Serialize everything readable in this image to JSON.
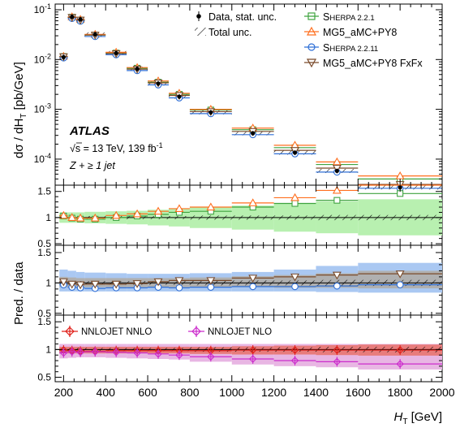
{
  "chart_data": [
    {
      "type": "line",
      "panel": "main",
      "ylabel": "dσ / dH_T [pb/GeV]",
      "yscale": "log",
      "ylim": [
        3e-05,
        0.13
      ],
      "xlim": [
        160,
        2000
      ],
      "x_ticks": [
        200,
        400,
        600,
        800,
        1000,
        1200,
        1400,
        1600,
        1800,
        2000
      ],
      "y_ticks": [
        {
          "v": 0.1,
          "b": "10",
          "e": "-1"
        },
        {
          "v": 0.01,
          "b": "10",
          "e": "-2"
        },
        {
          "v": 0.001,
          "b": "10",
          "e": "-3"
        },
        {
          "v": 0.0001,
          "b": "10",
          "e": "-4"
        }
      ],
      "bins": [
        [
          180,
          220
        ],
        [
          220,
          260
        ],
        [
          260,
          300
        ],
        [
          300,
          400
        ],
        [
          400,
          500
        ],
        [
          500,
          600
        ],
        [
          600,
          700
        ],
        [
          700,
          800
        ],
        [
          800,
          1000
        ],
        [
          1000,
          1200
        ],
        [
          1200,
          1400
        ],
        [
          1400,
          1600
        ],
        [
          1600,
          2000
        ]
      ],
      "data": [
        0.0112,
        0.072,
        0.064,
        0.032,
        0.0135,
        0.0065,
        0.0033,
        0.0018,
        0.00087,
        0.00033,
        0.000135,
        5.8e-05,
        2.7e-05
      ],
      "series": [
        {
          "name": "SHERPA 2.2.1",
          "color": "#3fa33f",
          "marker": "square",
          "values": [
            0.0115,
            0.071,
            0.062,
            0.031,
            0.0135,
            0.0067,
            0.0035,
            0.002,
            0.00097,
            0.00039,
            0.00017,
            7.8e-05,
            4e-05
          ]
        },
        {
          "name": "MG5_aMC+PY8",
          "color": "#ff6f1f",
          "marker": "triangle-up",
          "values": [
            0.0116,
            0.072,
            0.064,
            0.032,
            0.014,
            0.0069,
            0.0037,
            0.0021,
            0.001,
            0.00042,
            0.00019,
            8.8e-05,
            4.6e-05
          ]
        },
        {
          "name": "SHERPA 2.2.11",
          "color": "#2f6fd6",
          "marker": "circle",
          "values": [
            0.0108,
            0.067,
            0.059,
            0.029,
            0.0125,
            0.006,
            0.0031,
            0.0017,
            0.00082,
            0.00031,
            0.000128,
            5.5e-05,
            2.6e-05
          ]
        },
        {
          "name": "MG5_aMC+PY8 FxFx",
          "color": "#7a4a2a",
          "marker": "triangle-down",
          "values": [
            0.0114,
            0.07,
            0.062,
            0.031,
            0.0132,
            0.0064,
            0.0034,
            0.0019,
            0.0009,
            0.00036,
            0.00015,
            6.6e-05,
            3.1e-05
          ]
        }
      ],
      "legend": {
        "data": "Data, stat. unc.",
        "total": "Total unc."
      },
      "annotations": {
        "experiment": "ATLAS",
        "energy_sqrt": "s",
        "energy": " = 13 TeV, 139 fb",
        "energy_exp": "-1",
        "selection": "Z + ≥ 1 jet"
      }
    },
    {
      "type": "line",
      "panel": "ratio-1",
      "ylim": [
        0.47,
        1.62
      ],
      "y_ticks": [
        {
          "v": 0.5,
          "l": "0.5"
        },
        {
          "v": 1,
          "l": "1"
        },
        {
          "v": 1.5,
          "l": "1.5"
        }
      ],
      "band": {
        "color": "#b8f0b0",
        "up": [
          1.1,
          1.1,
          1.1,
          1.11,
          1.12,
          1.13,
          1.15,
          1.17,
          1.2,
          1.23,
          1.27,
          1.31,
          1.35
        ],
        "dn": [
          0.9,
          0.9,
          0.9,
          0.89,
          0.88,
          0.87,
          0.85,
          0.83,
          0.8,
          0.77,
          0.73,
          0.7,
          0.66
        ]
      },
      "series": [
        {
          "name": "SHERPA 2.2.1",
          "values": [
            1.03,
            0.99,
            0.97,
            0.97,
            1.0,
            1.03,
            1.06,
            1.1,
            1.12,
            1.2,
            1.27,
            1.33,
            1.46
          ]
        },
        {
          "name": "MG5_aMC+PY8",
          "values": [
            1.04,
            1.0,
            0.99,
            0.99,
            1.04,
            1.07,
            1.12,
            1.17,
            1.2,
            1.28,
            1.38,
            1.52,
            1.64
          ]
        }
      ]
    },
    {
      "type": "line",
      "panel": "ratio-2",
      "ylim": [
        0.47,
        1.62
      ],
      "y_ticks": [
        {
          "v": 0.5,
          "l": "0.5"
        },
        {
          "v": 1,
          "l": "1"
        },
        {
          "v": 1.5,
          "l": "1.5"
        }
      ],
      "ylabel": "Pred. / data",
      "bands": [
        {
          "color": "#aac8f2",
          "up": [
            1.22,
            1.2,
            1.18,
            1.17,
            1.16,
            1.15,
            1.15,
            1.15,
            1.16,
            1.18,
            1.22,
            1.28,
            1.33
          ],
          "dn": [
            0.86,
            0.86,
            0.86,
            0.86,
            0.86,
            0.86,
            0.86,
            0.86,
            0.86,
            0.86,
            0.86,
            0.85,
            0.84
          ]
        },
        {
          "color": "#b0b0b0",
          "up": [
            1.1,
            1.09,
            1.08,
            1.08,
            1.08,
            1.08,
            1.08,
            1.08,
            1.09,
            1.11,
            1.13,
            1.16,
            1.2
          ],
          "dn": [
            0.93,
            0.93,
            0.93,
            0.93,
            0.93,
            0.93,
            0.93,
            0.93,
            0.93,
            0.93,
            0.92,
            0.92,
            0.91
          ]
        }
      ],
      "series": [
        {
          "name": "SHERPA 2.2.11",
          "values": [
            0.97,
            0.93,
            0.92,
            0.91,
            0.92,
            0.92,
            0.93,
            0.92,
            0.93,
            0.94,
            0.94,
            0.95,
            0.97
          ]
        },
        {
          "name": "MG5_aMC+PY8 FxFx",
          "values": [
            1.02,
            0.98,
            0.97,
            0.98,
            0.98,
            0.99,
            1.02,
            1.04,
            1.04,
            1.08,
            1.1,
            1.13,
            1.15
          ]
        }
      ]
    },
    {
      "type": "line",
      "panel": "ratio-3",
      "ylim": [
        0.42,
        1.62
      ],
      "y_ticks": [
        {
          "v": 0.5,
          "l": "0.5"
        },
        {
          "v": 1,
          "l": "1"
        },
        {
          "v": 1.5,
          "l": "1.5"
        }
      ],
      "xlabel": "H_T [GeV]",
      "bands": [
        {
          "color": "#e8b6e3",
          "up": [
            1.1,
            1.1,
            1.1,
            1.1,
            1.1,
            1.1,
            1.1,
            1.1,
            1.1,
            1.1,
            1.1,
            1.1,
            1.1
          ],
          "dn": [
            0.84,
            0.85,
            0.86,
            0.86,
            0.85,
            0.84,
            0.83,
            0.82,
            0.78,
            0.73,
            0.7,
            0.68,
            0.64
          ]
        },
        {
          "color": "#e87c7c",
          "up": [
            1.05,
            1.05,
            1.05,
            1.05,
            1.05,
            1.05,
            1.05,
            1.05,
            1.05,
            1.06,
            1.07,
            1.08,
            1.09
          ],
          "dn": [
            0.93,
            0.93,
            0.93,
            0.93,
            0.93,
            0.93,
            0.93,
            0.93,
            0.92,
            0.91,
            0.91,
            0.9,
            0.89
          ]
        }
      ],
      "series": [
        {
          "name": "NNLOJET NNLO",
          "color": "#e0201a",
          "values": [
            0.99,
            0.98,
            0.97,
            0.97,
            0.98,
            0.98,
            0.98,
            0.98,
            0.98,
            0.99,
            0.99,
            0.99,
            0.99
          ]
        },
        {
          "name": "NNLOJET NLO",
          "color": "#cc2ccc",
          "values": [
            0.94,
            0.96,
            0.95,
            0.96,
            0.95,
            0.94,
            0.92,
            0.9,
            0.87,
            0.83,
            0.8,
            0.78,
            0.74
          ]
        }
      ]
    }
  ],
  "axis_labels": {
    "main_y": "dσ / dH",
    "main_y_sub": "T",
    "main_y_unit": " [pb/GeV]",
    "ratio_y": "Pred. / data",
    "x": "H",
    "x_sub": "T",
    "x_unit": " [GeV]"
  },
  "legend_labels": {
    "data": "Data, stat. unc.",
    "total": "Total unc.",
    "s221_prefix": "S",
    "s221_rest": "HERPA 2.2.1",
    "mg5": "MG5_aMC+PY8",
    "s2211_prefix": "S",
    "s2211_rest": "HERPA 2.2.11",
    "fxfx": "MG5_aMC+PY8 FxFx",
    "nnlo": "NNLOJET NNLO",
    "nlo": "NNLOJET NLO"
  }
}
